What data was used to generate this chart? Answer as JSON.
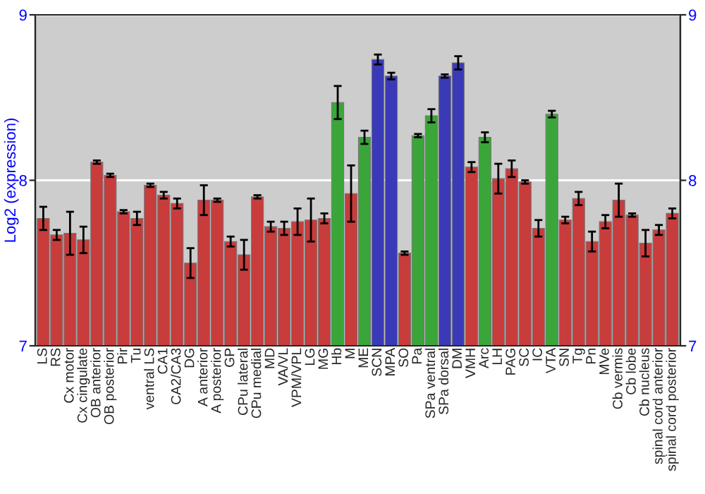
{
  "chart_data": {
    "type": "bar",
    "ylabel": "Log2 (expression)",
    "categories": [
      "LS",
      "RS",
      "Cx motor",
      "Cx cingulate",
      "OB anterior",
      "OB posterior",
      "Pir",
      "Tu",
      "ventral LS",
      "CA1",
      "CA2/CA3",
      "DG",
      "A anterior",
      "A posterior",
      "GP",
      "CPu lateral",
      "CPu medial",
      "MD",
      "VA/VL",
      "VPM/VPL",
      "LG",
      "MG",
      "Hb",
      "M",
      "ME",
      "SCN",
      "MPA",
      "SO",
      "Pa",
      "SPa ventral",
      "SPa dorsal",
      "DM",
      "VMH",
      "Arc",
      "LH",
      "PAG",
      "SC",
      "IC",
      "VTA",
      "SN",
      "Tg",
      "Pn",
      "MVe",
      "Cb vermis",
      "Cb lobe",
      "Cb nucleus",
      "spinal cord anterior",
      "spinal cord posterior"
    ],
    "values": [
      7.77,
      7.67,
      7.68,
      7.64,
      8.11,
      8.03,
      7.81,
      7.77,
      7.97,
      7.91,
      7.86,
      7.5,
      7.88,
      7.88,
      7.63,
      7.55,
      7.9,
      7.72,
      7.71,
      7.75,
      7.76,
      7.77,
      8.47,
      7.92,
      8.26,
      8.73,
      8.63,
      7.56,
      8.27,
      8.39,
      8.63,
      8.71,
      8.08,
      8.26,
      8.01,
      8.07,
      7.99,
      7.71,
      8.4,
      7.76,
      7.89,
      7.63,
      7.75,
      7.88,
      7.79,
      7.62,
      7.7,
      7.8
    ],
    "errors": [
      0.07,
      0.03,
      0.13,
      0.08,
      0.01,
      0.01,
      0.01,
      0.04,
      0.01,
      0.02,
      0.03,
      0.09,
      0.09,
      0.01,
      0.03,
      0.09,
      0.01,
      0.03,
      0.04,
      0.08,
      0.13,
      0.03,
      0.1,
      0.17,
      0.04,
      0.03,
      0.02,
      0.01,
      0.01,
      0.04,
      0.01,
      0.04,
      0.03,
      0.03,
      0.09,
      0.05,
      0.01,
      0.05,
      0.02,
      0.02,
      0.04,
      0.06,
      0.04,
      0.1,
      0.01,
      0.08,
      0.03,
      0.03
    ],
    "colors": [
      "#c83c3c",
      "#c83c3c",
      "#c83c3c",
      "#c83c3c",
      "#c83c3c",
      "#c83c3c",
      "#c83c3c",
      "#c83c3c",
      "#c83c3c",
      "#c83c3c",
      "#c83c3c",
      "#c83c3c",
      "#c83c3c",
      "#c83c3c",
      "#c83c3c",
      "#c83c3c",
      "#c83c3c",
      "#c83c3c",
      "#c83c3c",
      "#c83c3c",
      "#c83c3c",
      "#c83c3c",
      "#3aa63a",
      "#c83c3c",
      "#3aa63a",
      "#3a3ab8",
      "#3a3ab8",
      "#c83c3c",
      "#3aa63a",
      "#3aa63a",
      "#3a3ab8",
      "#3a3ab8",
      "#c83c3c",
      "#3aa63a",
      "#c83c3c",
      "#c83c3c",
      "#c83c3c",
      "#c83c3c",
      "#3aa63a",
      "#c83c3c",
      "#c83c3c",
      "#c83c3c",
      "#c83c3c",
      "#c83c3c",
      "#c83c3c",
      "#c83c3c",
      "#c83c3c",
      "#c83c3c"
    ],
    "ylim": [
      7,
      9
    ],
    "yticks": [
      7,
      8,
      9
    ],
    "y2lim": [
      7,
      9
    ],
    "y2ticks": [
      7,
      8,
      9
    ],
    "grid": "y",
    "legend": false
  }
}
